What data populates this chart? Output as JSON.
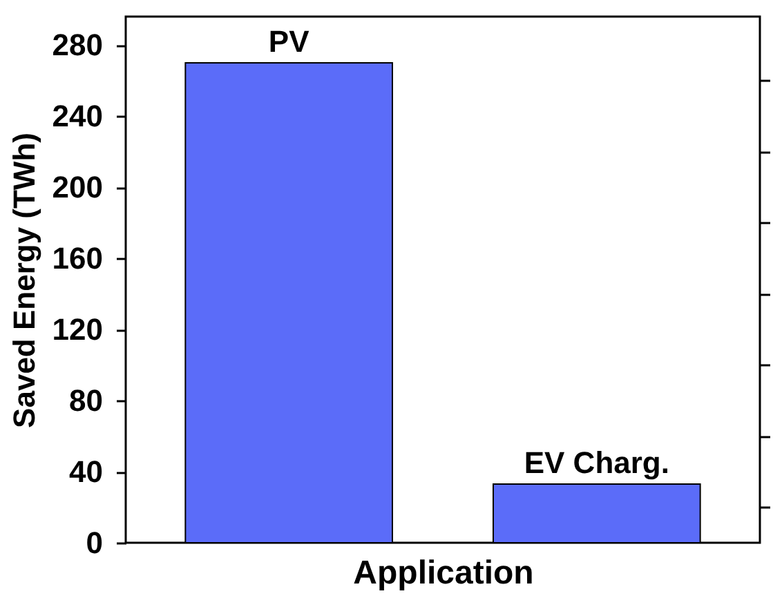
{
  "chart_data": {
    "type": "bar",
    "xlabel": "Application",
    "ylabel": "Saved Energy (TWh)",
    "categories": [
      "PV",
      "EV Charg."
    ],
    "values": [
      270,
      33
    ],
    "color": "#5b6cf9",
    "ylim": [
      0,
      296
    ],
    "yticks": [
      0,
      {
        "value": 20,
        "label": null
      },
      40,
      {
        "value": 60,
        "label": null
      },
      80,
      {
        "value": 100,
        "label": null
      },
      120,
      {
        "value": 140,
        "label": null
      },
      160,
      {
        "value": 180,
        "label": null
      },
      200,
      {
        "value": 220,
        "label": null
      },
      240,
      {
        "value": 260,
        "label": null
      },
      280
    ],
    "tick_labels": "y",
    "grid": false
  }
}
